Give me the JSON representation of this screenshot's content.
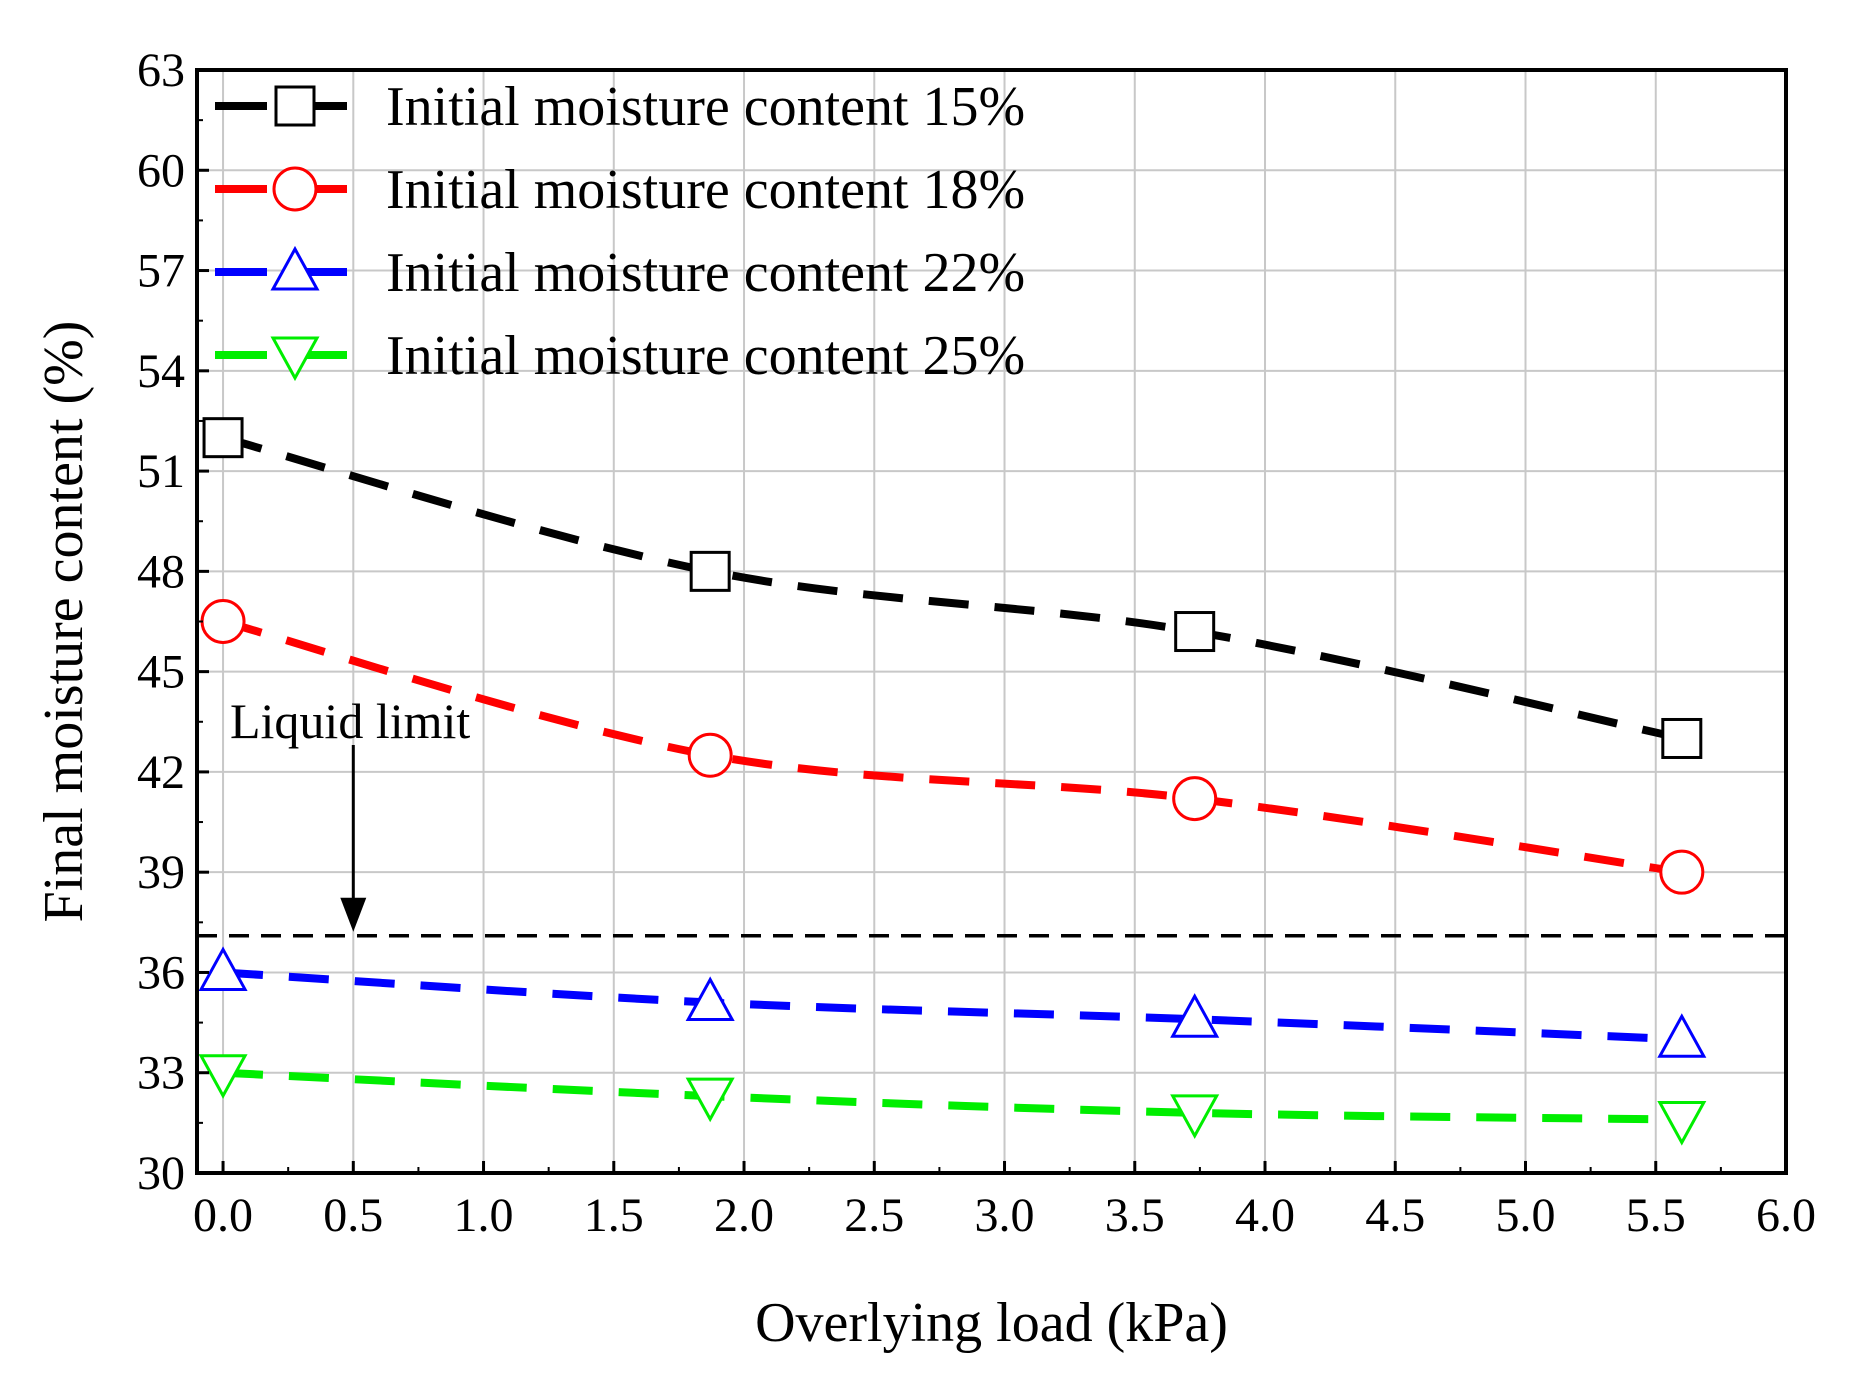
{
  "chart_data": {
    "type": "line",
    "title": "",
    "xlabel": "Overlying load (kPa)",
    "ylabel": "Final moisture content (%)",
    "xlim": [
      -0.1,
      6.0
    ],
    "ylim": [
      30,
      63
    ],
    "xticks": [
      "0.0",
      "0.5",
      "1.0",
      "1.5",
      "2.0",
      "2.5",
      "3.0",
      "3.5",
      "4.0",
      "4.5",
      "5.0",
      "5.5",
      "6.0"
    ],
    "yticks": [
      "30",
      "33",
      "36",
      "39",
      "42",
      "45",
      "48",
      "51",
      "54",
      "57",
      "60",
      "63"
    ],
    "grid": true,
    "legend_position": "top-left",
    "series": [
      {
        "name": "Initial moisture content 15%",
        "color": "#000000",
        "marker": "square",
        "x": [
          0.0,
          1.87,
          3.73,
          5.6
        ],
        "y": [
          52.0,
          48.0,
          46.2,
          43.0
        ]
      },
      {
        "name": "Initial moisture content 18%",
        "color": "#ff0000",
        "marker": "circle",
        "x": [
          0.0,
          1.87,
          3.73,
          5.6
        ],
        "y": [
          46.5,
          42.5,
          41.2,
          39.0
        ]
      },
      {
        "name": "Initial moisture content 22%",
        "color": "#0000ff",
        "marker": "triangle-up",
        "x": [
          0.0,
          1.87,
          3.73,
          5.6
        ],
        "y": [
          36.0,
          35.1,
          34.6,
          34.0
        ]
      },
      {
        "name": "Initial moisture content 25%",
        "color": "#00ee00",
        "marker": "triangle-down",
        "x": [
          0.0,
          1.87,
          3.73,
          5.6
        ],
        "y": [
          33.0,
          32.3,
          31.8,
          31.6
        ]
      }
    ],
    "reference_line": {
      "y": 37.1,
      "color": "#000000"
    },
    "annotation": {
      "text": "Liquid limit",
      "arrow_x": 0.5
    }
  }
}
